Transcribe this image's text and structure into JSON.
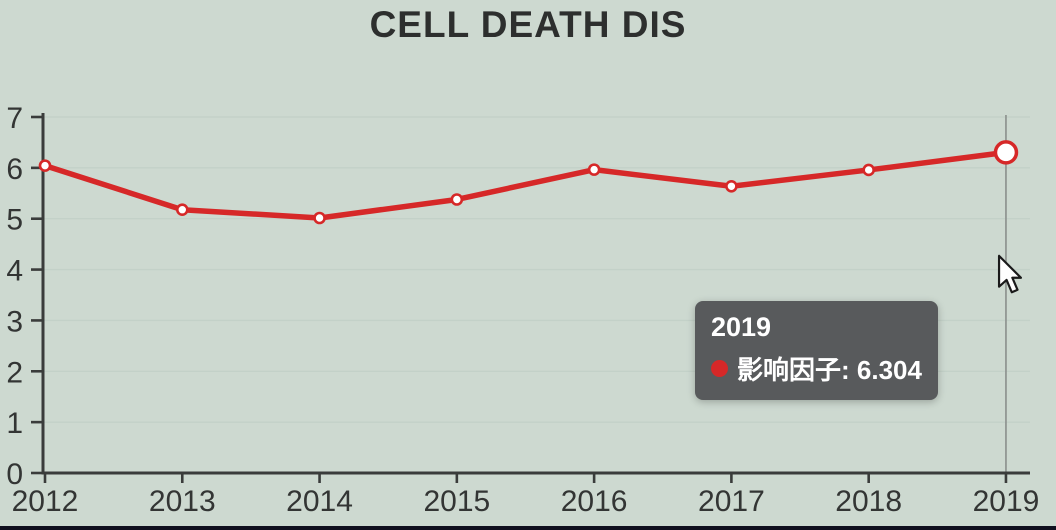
{
  "title": "CELL DEATH DIS",
  "tooltip": {
    "year": "2019",
    "series_text": "影响因子: 6.304",
    "marker_color": "#d62828"
  },
  "colors": {
    "background": "#cdd9d0",
    "line": "#d62828",
    "marker_fill": "#ffffff",
    "axis": "#3a3c3b",
    "grid": "#c3d1c8",
    "crosshair": "#8a8f8c",
    "tooltip_bg": "#585a5c",
    "tooltip_text": "#ffffff",
    "bottom_bar": "#10101e"
  },
  "chart_data": {
    "type": "line",
    "title": "CELL DEATH DIS",
    "categories": [
      "2012",
      "2013",
      "2014",
      "2015",
      "2016",
      "2017",
      "2018",
      "2019"
    ],
    "series": [
      {
        "name": "影响因子",
        "color": "#d62828",
        "values": [
          6.044,
          5.177,
          5.014,
          5.378,
          5.965,
          5.638,
          5.959,
          6.304
        ]
      }
    ],
    "xlabel": "",
    "ylabel": "",
    "ylim": [
      0,
      7
    ],
    "yticks": [
      0,
      1,
      2,
      3,
      4,
      5,
      6,
      7
    ],
    "grid": true,
    "legend": "none",
    "highlighted_index": 7,
    "highlighted_value_label": "6.304"
  }
}
